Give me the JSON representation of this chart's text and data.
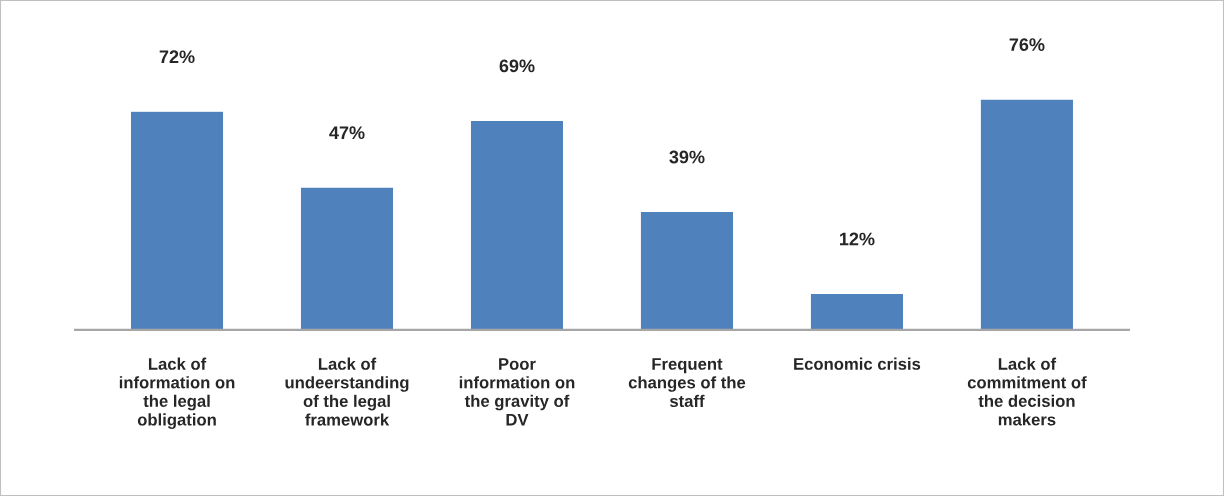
{
  "chart_data": {
    "type": "bar",
    "categories": [
      "Lack of\ninformation on\nthe legal\nobligation",
      "Lack of\nundeerstanding\nof the legal\nframework",
      "Poor\ninformation on\nthe gravity of\nDV",
      "Frequent\nchanges of the\nstaff",
      "Economic crisis",
      "Lack of\ncommitment of\nthe decision\nmakers"
    ],
    "values": [
      72,
      47,
      69,
      39,
      12,
      76
    ],
    "value_labels": [
      "72%",
      "47%",
      "69%",
      "39%",
      "12%",
      "76%"
    ],
    "color": "#4f81bd"
  }
}
